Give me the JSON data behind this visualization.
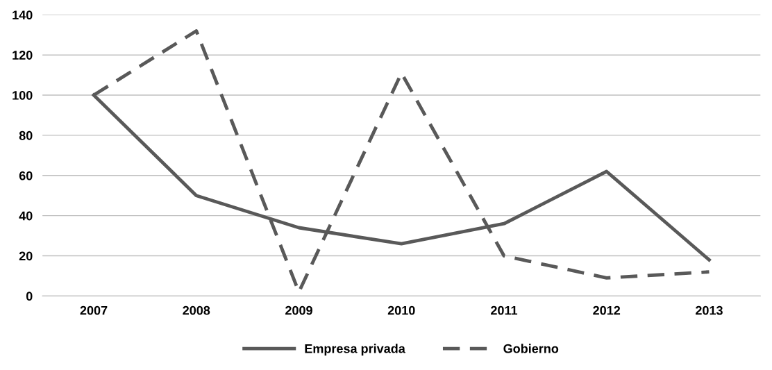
{
  "chart_data": {
    "type": "line",
    "categories": [
      "2007",
      "2008",
      "2009",
      "2010",
      "2011",
      "2012",
      "2013"
    ],
    "series": [
      {
        "name": "Empresa privada",
        "color": "#595959",
        "line_style": "solid",
        "values": [
          100,
          50,
          34,
          26,
          36,
          62,
          18
        ]
      },
      {
        "name": "Gobierno",
        "color": "#595959",
        "line_style": "dashed",
        "values": [
          100,
          132,
          2,
          111,
          20,
          9,
          12
        ]
      }
    ],
    "ylim": [
      0,
      140
    ],
    "yticks": [
      0,
      20,
      40,
      60,
      80,
      100,
      120,
      140
    ],
    "grid": "y",
    "legend": "bottom",
    "marker": "none"
  }
}
